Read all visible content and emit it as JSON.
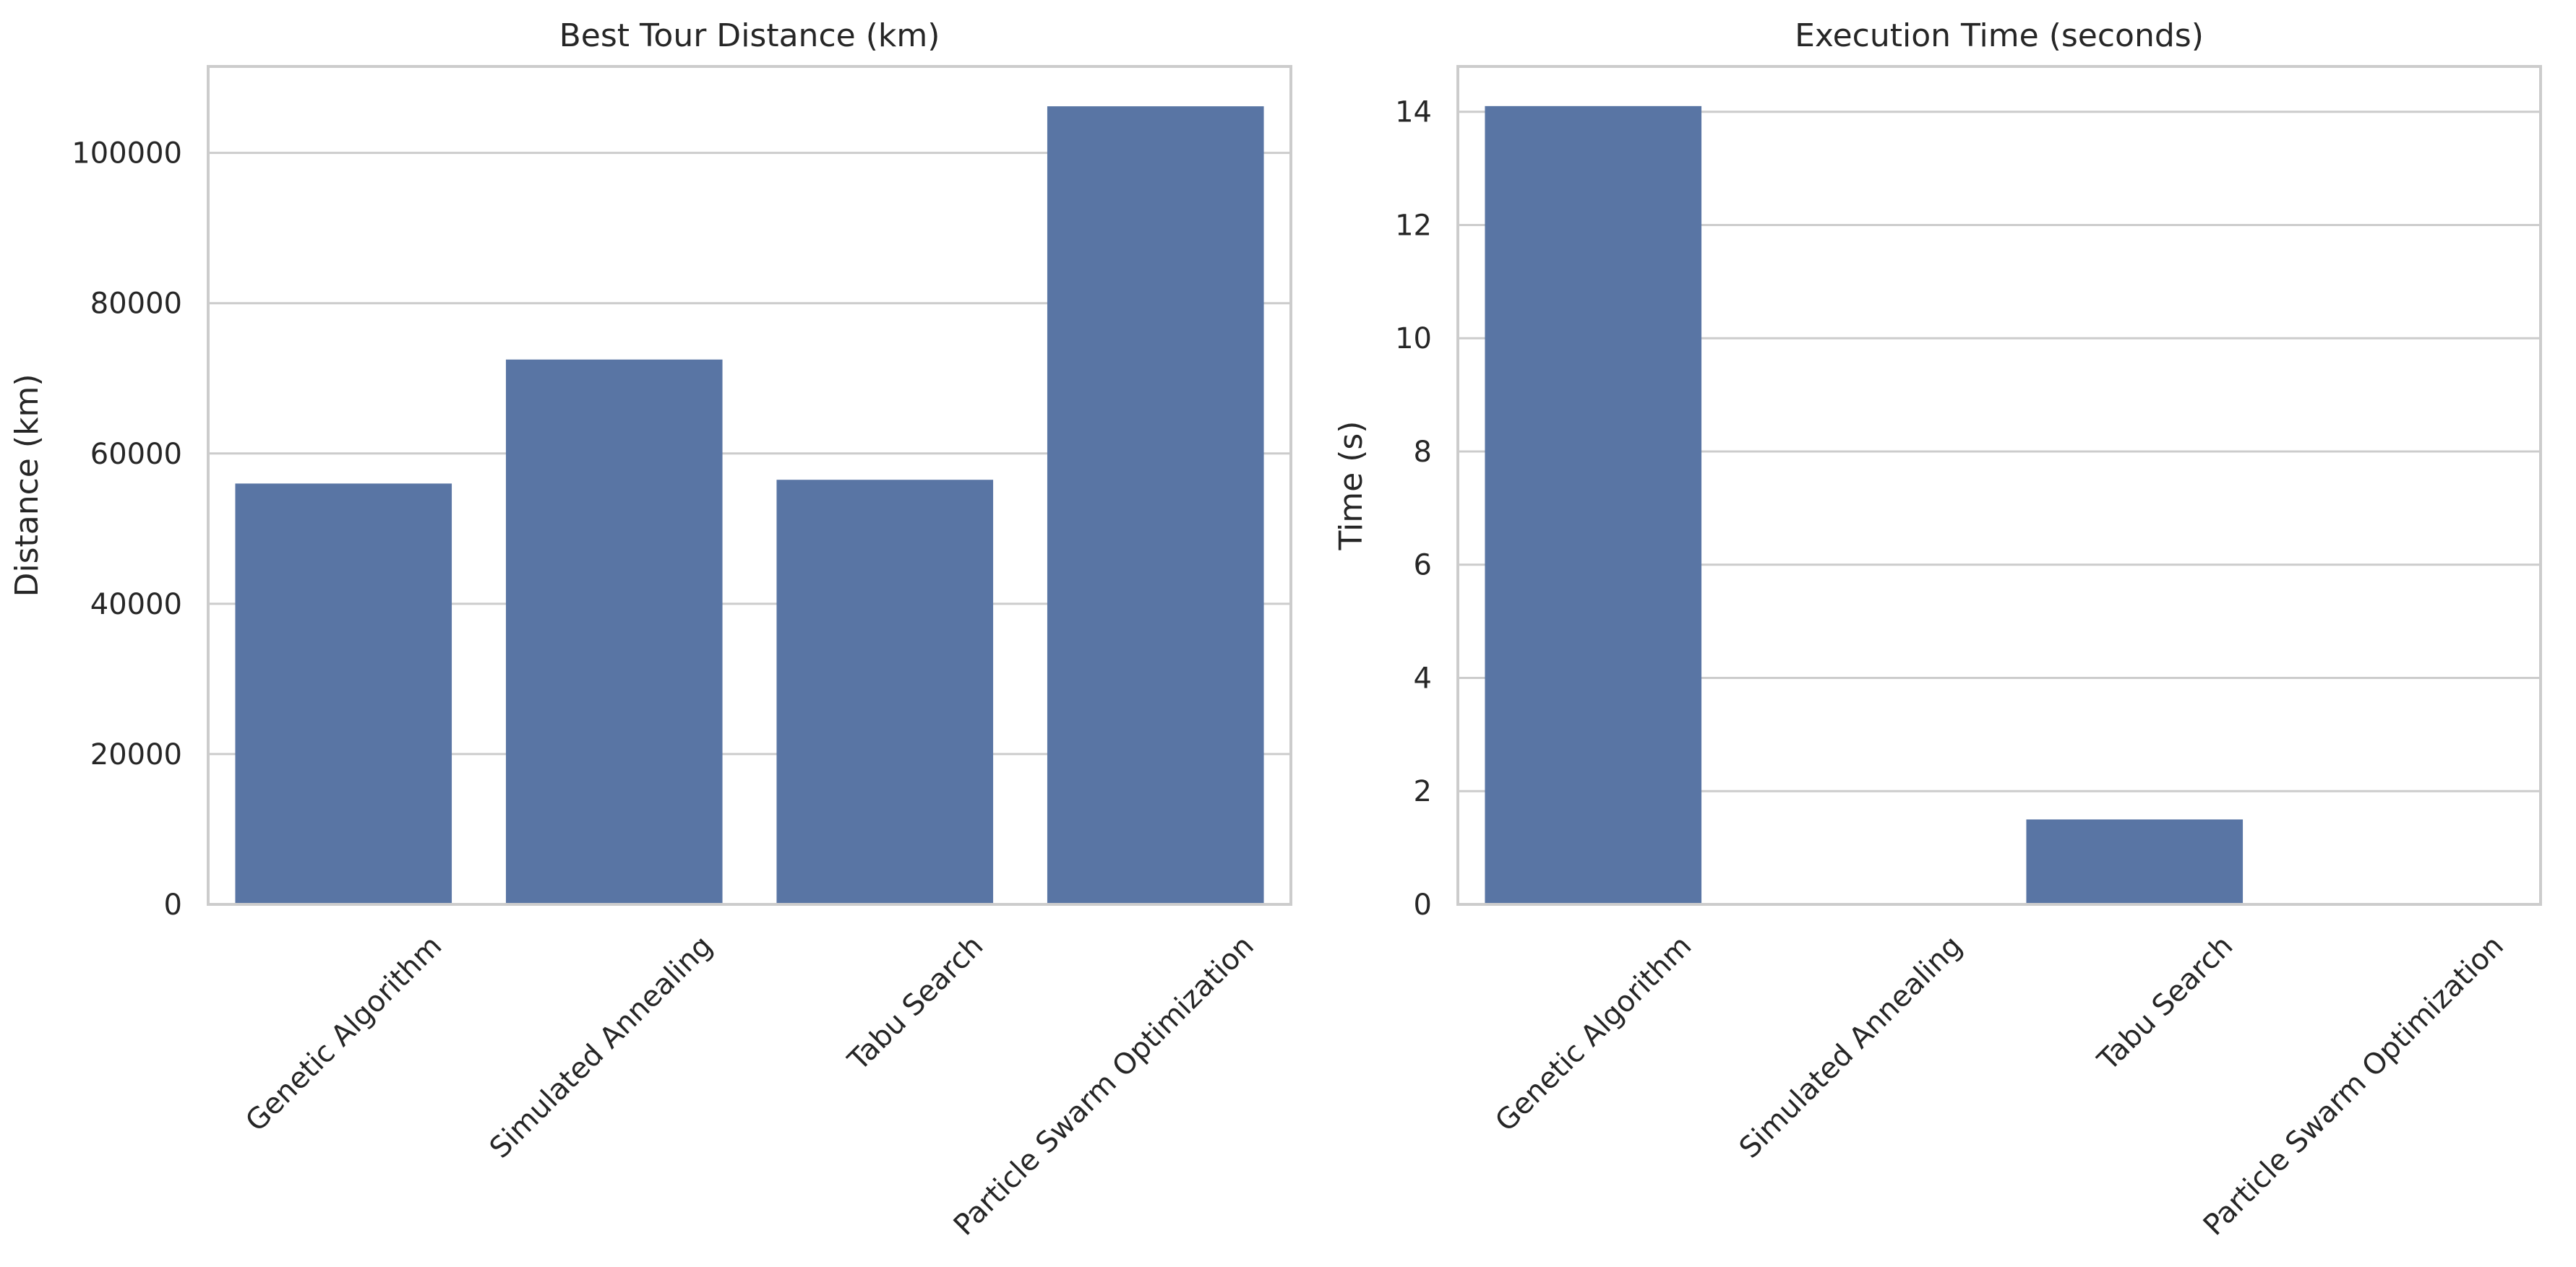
{
  "chart_data": [
    {
      "type": "bar",
      "title": "Best Tour Distance (km)",
      "xlabel": "",
      "ylabel": "Distance (km)",
      "categories": [
        "Genetic Algorithm",
        "Simulated Annealing",
        "Tabu Search",
        "Particle Swarm Optimization"
      ],
      "values": [
        56000,
        72500,
        56500,
        106200
      ],
      "ylim": [
        0,
        111500
      ],
      "yticks": [
        0,
        20000,
        40000,
        60000,
        80000,
        100000
      ],
      "ytick_labels": [
        "0",
        "20000",
        "40000",
        "60000",
        "80000",
        "100000"
      ],
      "grid": "horizontal",
      "bar_color": "#5975a4"
    },
    {
      "type": "bar",
      "title": "Execution Time (seconds)",
      "xlabel": "",
      "ylabel": "Time (s)",
      "categories": [
        "Genetic Algorithm",
        "Simulated Annealing",
        "Tabu Search",
        "Particle Swarm Optimization"
      ],
      "values": [
        14.1,
        0.0,
        1.5,
        0.0
      ],
      "ylim": [
        0,
        14.8
      ],
      "yticks": [
        0,
        2,
        4,
        6,
        8,
        10,
        12,
        14
      ],
      "ytick_labels": [
        "0",
        "2",
        "4",
        "6",
        "8",
        "10",
        "12",
        "14"
      ],
      "grid": "horizontal",
      "bar_color": "#5975a4"
    }
  ],
  "style": {
    "grid_color": "#cccccc",
    "spine_color": "#cccccc",
    "text_color": "#262626",
    "background": "#ffffff"
  }
}
